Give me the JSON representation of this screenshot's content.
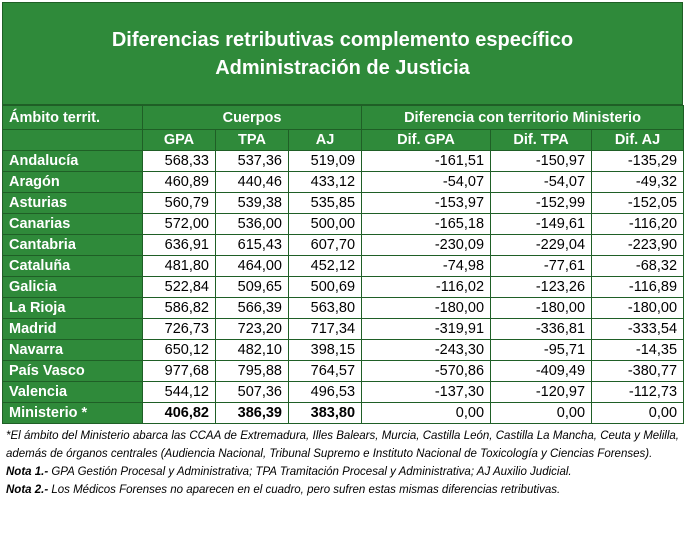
{
  "title": {
    "line1": "Diferencias retributivas complemento específico",
    "line2": "Administración de Justicia"
  },
  "header": {
    "ambito": "Ámbito territ.",
    "cuerpos": "Cuerpos",
    "diferencia": "Diferencia con territorio Ministerio",
    "cols": [
      "GPA",
      "TPA",
      "AJ",
      "Dif. GPA",
      "Dif. TPA",
      "Dif. AJ"
    ]
  },
  "rows": [
    {
      "name": "Andalucía",
      "v": [
        "568,33",
        "537,36",
        "519,09",
        "-161,51",
        "-150,97",
        "-135,29"
      ]
    },
    {
      "name": "Aragón",
      "v": [
        "460,89",
        "440,46",
        "433,12",
        "-54,07",
        "-54,07",
        "-49,32"
      ]
    },
    {
      "name": "Asturias",
      "v": [
        "560,79",
        "539,38",
        "535,85",
        "-153,97",
        "-152,99",
        "-152,05"
      ]
    },
    {
      "name": "Canarias",
      "v": [
        "572,00",
        "536,00",
        "500,00",
        "-165,18",
        "-149,61",
        "-116,20"
      ]
    },
    {
      "name": "Cantabria",
      "v": [
        "636,91",
        "615,43",
        "607,70",
        "-230,09",
        "-229,04",
        "-223,90"
      ]
    },
    {
      "name": "Cataluña",
      "v": [
        "481,80",
        "464,00",
        "452,12",
        "-74,98",
        "-77,61",
        "-68,32"
      ]
    },
    {
      "name": "Galicia",
      "v": [
        "522,84",
        "509,65",
        "500,69",
        "-116,02",
        "-123,26",
        "-116,89"
      ]
    },
    {
      "name": "La Rioja",
      "v": [
        "586,82",
        "566,39",
        "563,80",
        "-180,00",
        "-180,00",
        "-180,00"
      ]
    },
    {
      "name": "Madrid",
      "v": [
        "726,73",
        "723,20",
        "717,34",
        "-319,91",
        "-336,81",
        "-333,54"
      ]
    },
    {
      "name": "Navarra",
      "v": [
        "650,12",
        "482,10",
        "398,15",
        "-243,30",
        "-95,71",
        "-14,35"
      ]
    },
    {
      "name": "País Vasco",
      "v": [
        "977,68",
        "795,88",
        "764,57",
        "-570,86",
        "-409,49",
        "-380,77"
      ]
    },
    {
      "name": "Valencia",
      "v": [
        "544,12",
        "507,36",
        "496,53",
        "-137,30",
        "-120,97",
        "-112,73"
      ]
    },
    {
      "name": "Ministerio *",
      "v": [
        "406,82",
        "386,39",
        "383,80",
        "0,00",
        "0,00",
        "0,00"
      ]
    }
  ],
  "notes": {
    "ambito": "*El ámbito del Ministerio abarca las CCAA de Extremadura, Illes Balears, Murcia, Castilla León, Castilla La Mancha, Ceuta y Melilla, además de órganos centrales (Audiencia Nacional, Tribunal Supremo e Instituto Nacional de Toxicología y Ciencias Forenses).",
    "nota1_label": "Nota 1.-",
    "nota1_text": " GPA Gestión Procesal y Administrativa; TPA Tramitación Procesal y Administrativa; AJ Auxilio Judicial.",
    "nota2_label": "Nota 2.-",
    "nota2_text": " Los Médicos Forenses no aparecen en el cuadro, pero sufren estas mismas diferencias retributivas."
  }
}
